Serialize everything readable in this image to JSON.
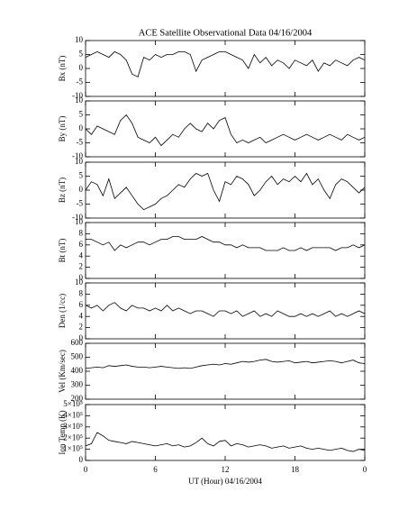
{
  "chart_data": [
    {
      "type": "line",
      "title": "ACE Satellite Observational Data   04/16/2004",
      "ylabel": "Bx (nT)",
      "color": "#000000",
      "x": [
        0,
        0.5,
        1,
        1.5,
        2,
        2.5,
        3,
        3.5,
        4,
        4.5,
        5,
        5.5,
        6,
        6.5,
        7,
        7.5,
        8,
        8.5,
        9,
        9.5,
        10,
        10.5,
        11,
        11.5,
        12,
        12.5,
        13,
        13.5,
        14,
        14.5,
        15,
        15.5,
        16,
        16.5,
        17,
        17.5,
        18,
        18.5,
        19,
        19.5,
        20,
        20.5,
        21,
        21.5,
        22,
        22.5,
        23,
        23.5,
        24
      ],
      "values": [
        4,
        5,
        6,
        5,
        4,
        6,
        5,
        3,
        -2,
        -3,
        4,
        3,
        5,
        4,
        5,
        5,
        6,
        6,
        5,
        -1,
        3,
        4,
        5,
        6,
        6,
        5,
        4,
        3,
        0,
        5,
        2,
        4,
        1,
        3,
        2,
        0,
        3,
        2,
        1,
        3,
        -1,
        2,
        1,
        3,
        2,
        1,
        3,
        4,
        3
      ],
      "xlim": [
        0,
        24
      ],
      "ylim": [
        -10,
        10
      ],
      "yticks": [
        -10,
        -5,
        0,
        5,
        10
      ]
    },
    {
      "type": "line",
      "ylabel": "By (nT)",
      "color": "#000000",
      "x": [
        0,
        0.5,
        1,
        1.5,
        2,
        2.5,
        3,
        3.5,
        4,
        4.5,
        5,
        5.5,
        6,
        6.5,
        7,
        7.5,
        8,
        8.5,
        9,
        9.5,
        10,
        10.5,
        11,
        11.5,
        12,
        12.5,
        13,
        13.5,
        14,
        14.5,
        15,
        15.5,
        16,
        16.5,
        17,
        17.5,
        18,
        18.5,
        19,
        19.5,
        20,
        20.5,
        21,
        21.5,
        22,
        22.5,
        23,
        23.5,
        24
      ],
      "values": [
        0,
        -2,
        1,
        0,
        -1,
        -2,
        3,
        5,
        2,
        -3,
        -4,
        -5,
        -3,
        -6,
        -4,
        -2,
        -3,
        0,
        2,
        0,
        -1,
        2,
        0,
        3,
        4,
        -2,
        -5,
        -4,
        -5,
        -4,
        -3,
        -5,
        -4,
        -3,
        -2,
        -3,
        -4,
        -3,
        -2,
        -3,
        -4,
        -3,
        -2,
        -3,
        -4,
        -2,
        -3,
        -4,
        -3
      ],
      "xlim": [
        0,
        24
      ],
      "ylim": [
        -10,
        10
      ],
      "yticks": [
        -10,
        -5,
        0,
        5,
        10
      ]
    },
    {
      "type": "line",
      "ylabel": "Bz (nT)",
      "color": "#000000",
      "x": [
        0,
        0.5,
        1,
        1.5,
        2,
        2.5,
        3,
        3.5,
        4,
        4.5,
        5,
        5.5,
        6,
        6.5,
        7,
        7.5,
        8,
        8.5,
        9,
        9.5,
        10,
        10.5,
        11,
        11.5,
        12,
        12.5,
        13,
        13.5,
        14,
        14.5,
        15,
        15.5,
        16,
        16.5,
        17,
        17.5,
        18,
        18.5,
        19,
        19.5,
        20,
        20.5,
        21,
        21.5,
        22,
        22.5,
        23,
        23.5,
        24
      ],
      "values": [
        0,
        3,
        2,
        -2,
        4,
        -3,
        -1,
        1,
        -2,
        -5,
        -7,
        -6,
        -5,
        -3,
        -2,
        0,
        2,
        1,
        4,
        6,
        5,
        6,
        0,
        -4,
        3,
        2,
        5,
        4,
        2,
        -2,
        0,
        3,
        5,
        2,
        4,
        3,
        5,
        3,
        6,
        2,
        4,
        0,
        -3,
        2,
        4,
        3,
        1,
        -1,
        1
      ],
      "xlim": [
        0,
        24
      ],
      "ylim": [
        -10,
        10
      ],
      "yticks": [
        -10,
        -5,
        0,
        5,
        10
      ]
    },
    {
      "type": "line",
      "ylabel": "Bt (nT)",
      "color": "#000000",
      "x": [
        0,
        0.5,
        1,
        1.5,
        2,
        2.5,
        3,
        3.5,
        4,
        4.5,
        5,
        5.5,
        6,
        6.5,
        7,
        7.5,
        8,
        8.5,
        9,
        9.5,
        10,
        10.5,
        11,
        11.5,
        12,
        12.5,
        13,
        13.5,
        14,
        14.5,
        15,
        15.5,
        16,
        16.5,
        17,
        17.5,
        18,
        18.5,
        19,
        19.5,
        20,
        20.5,
        21,
        21.5,
        22,
        22.5,
        23,
        23.5,
        24
      ],
      "values": [
        7,
        7,
        6.5,
        6,
        6.5,
        5,
        6,
        5.5,
        6,
        6.5,
        6.5,
        6,
        6.5,
        7,
        7,
        7.5,
        7.5,
        7,
        7,
        7,
        7.5,
        7,
        6.5,
        6.5,
        6,
        6,
        5.5,
        6,
        5.5,
        5.5,
        5.5,
        5,
        5,
        5,
        5.5,
        5,
        5,
        5.5,
        5,
        5.5,
        5.5,
        5.5,
        5.5,
        5,
        5.5,
        5.5,
        6,
        5.5,
        6
      ],
      "xlim": [
        0,
        24
      ],
      "ylim": [
        0,
        10
      ],
      "yticks": [
        0,
        2,
        4,
        6,
        8,
        10
      ]
    },
    {
      "type": "line",
      "ylabel": "Den (1/cc)",
      "color": "#000000",
      "x": [
        0,
        0.5,
        1,
        1.5,
        2,
        2.5,
        3,
        3.5,
        4,
        4.5,
        5,
        5.5,
        6,
        6.5,
        7,
        7.5,
        8,
        8.5,
        9,
        9.5,
        10,
        10.5,
        11,
        11.5,
        12,
        12.5,
        13,
        13.5,
        14,
        14.5,
        15,
        15.5,
        16,
        16.5,
        17,
        17.5,
        18,
        18.5,
        19,
        19.5,
        20,
        20.5,
        21,
        21.5,
        22,
        22.5,
        23,
        23.5,
        24
      ],
      "values": [
        6,
        5.5,
        6,
        5,
        6,
        6.5,
        5.5,
        5,
        6,
        5.5,
        5.5,
        5,
        5.5,
        5,
        6,
        5,
        5.5,
        5,
        4.5,
        5,
        5,
        4.5,
        4,
        5,
        5,
        4.5,
        5,
        4,
        4.5,
        5,
        4,
        4.5,
        4,
        5,
        4.5,
        4,
        4,
        4.5,
        4,
        4.5,
        4,
        4.5,
        5,
        4,
        4.5,
        4,
        4.5,
        5,
        4.5
      ],
      "xlim": [
        0,
        24
      ],
      "ylim": [
        0,
        10
      ],
      "yticks": [
        0,
        2,
        4,
        6,
        8,
        10
      ]
    },
    {
      "type": "line",
      "ylabel": "Vel (Km/sec)",
      "color": "#000000",
      "x": [
        0,
        0.5,
        1,
        1.5,
        2,
        2.5,
        3,
        3.5,
        4,
        4.5,
        5,
        5.5,
        6,
        6.5,
        7,
        7.5,
        8,
        8.5,
        9,
        9.5,
        10,
        10.5,
        11,
        11.5,
        12,
        12.5,
        13,
        13.5,
        14,
        14.5,
        15,
        15.5,
        16,
        16.5,
        17,
        17.5,
        18,
        18.5,
        19,
        19.5,
        20,
        20.5,
        21,
        21.5,
        22,
        22.5,
        23,
        23.5,
        24
      ],
      "values": [
        420,
        425,
        430,
        425,
        440,
        435,
        440,
        445,
        435,
        430,
        430,
        425,
        430,
        435,
        430,
        425,
        420,
        425,
        420,
        430,
        440,
        445,
        450,
        445,
        455,
        450,
        460,
        470,
        465,
        470,
        480,
        485,
        470,
        465,
        470,
        475,
        460,
        465,
        470,
        460,
        465,
        470,
        475,
        470,
        460,
        470,
        480,
        460,
        455
      ],
      "xlim": [
        0,
        24
      ],
      "ylim": [
        200,
        600
      ],
      "yticks": [
        200,
        300,
        400,
        500,
        600
      ]
    },
    {
      "type": "line",
      "ylabel": "Ion Temp (K)",
      "xlabel": "UT (Hour)   04/16/2004",
      "color": "#000000",
      "x": [
        0,
        0.5,
        1,
        1.5,
        2,
        2.5,
        3,
        3.5,
        4,
        4.5,
        5,
        5.5,
        6,
        6.5,
        7,
        7.5,
        8,
        8.5,
        9,
        9.5,
        10,
        10.5,
        11,
        11.5,
        12,
        12.5,
        13,
        13.5,
        14,
        14.5,
        15,
        15.5,
        16,
        16.5,
        17,
        17.5,
        18,
        18.5,
        19,
        19.5,
        20,
        20.5,
        21,
        21.5,
        22,
        22.5,
        23,
        23.5,
        24
      ],
      "values": [
        130000,
        150000,
        250000,
        220000,
        180000,
        170000,
        160000,
        150000,
        170000,
        160000,
        150000,
        140000,
        130000,
        140000,
        150000,
        130000,
        140000,
        120000,
        130000,
        160000,
        200000,
        150000,
        130000,
        170000,
        180000,
        130000,
        150000,
        140000,
        120000,
        130000,
        140000,
        130000,
        110000,
        120000,
        130000,
        110000,
        120000,
        130000,
        110000,
        100000,
        110000,
        100000,
        90000,
        100000,
        110000,
        90000,
        80000,
        100000,
        90000
      ],
      "xlim": [
        0,
        24
      ],
      "ylim": [
        0,
        500000
      ],
      "yticks": [
        0,
        {
          "value": 100000,
          "label": "1×10⁵"
        },
        {
          "value": 200000,
          "label": "2×10⁵"
        },
        {
          "value": 300000,
          "label": "3×10⁵"
        },
        {
          "value": 400000,
          "label": "4×10⁵"
        },
        {
          "value": 500000,
          "label": "5×10⁵"
        }
      ],
      "xticks": [
        0,
        6,
        12,
        18,
        {
          "value": 24,
          "label": "0"
        }
      ]
    }
  ]
}
